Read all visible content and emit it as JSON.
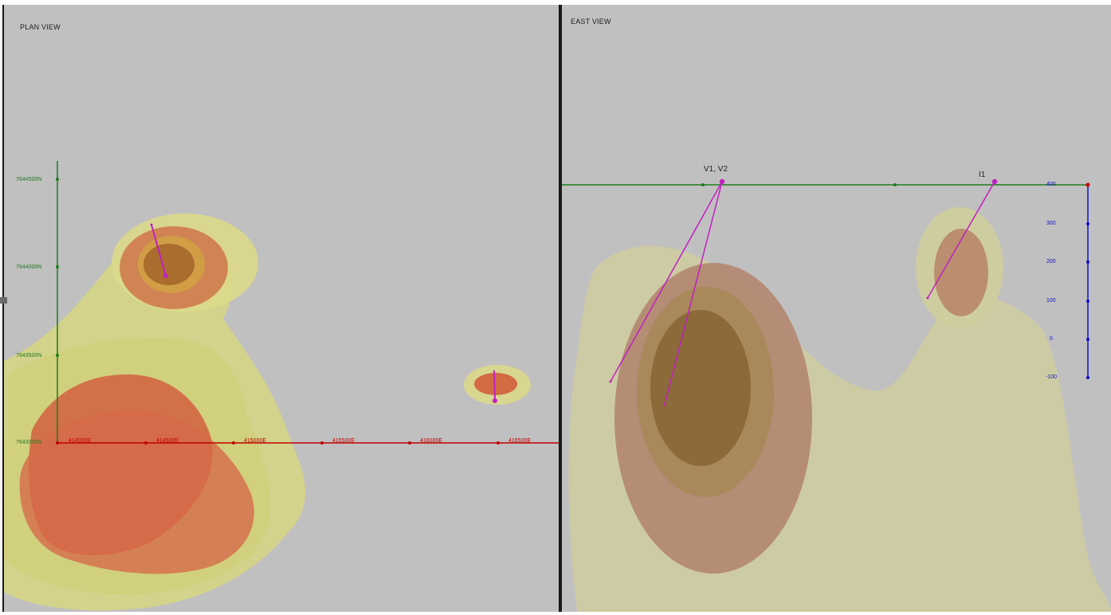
{
  "plan_view": {
    "title": "PLAN VIEW",
    "northing_labels": [
      "7644500N",
      "7644000N",
      "7643500N",
      "7643000N"
    ],
    "easting_labels": [
      "414000E",
      "414500E",
      "415000E",
      "415500E",
      "416000E",
      "416500E"
    ]
  },
  "east_view": {
    "title": "EAST VIEW",
    "elevation_labels": [
      "400",
      "300",
      "200",
      "100",
      "0",
      "-100"
    ],
    "drillhole_labels": [
      "V1, V2",
      "I1"
    ]
  },
  "colors": {
    "background": "#c0c0c0",
    "shell_outer": "#d8d890",
    "shell_mid": "#c8a070",
    "shell_inner": "#a86a3a",
    "shell_core": "#8a5a28",
    "plan_red_lens": "#d0553a",
    "northing_axis": "#1f7a1f",
    "easting_axis": "#c00000",
    "elevation_axis": "#1010c8",
    "drillhole": "#c020c0"
  }
}
